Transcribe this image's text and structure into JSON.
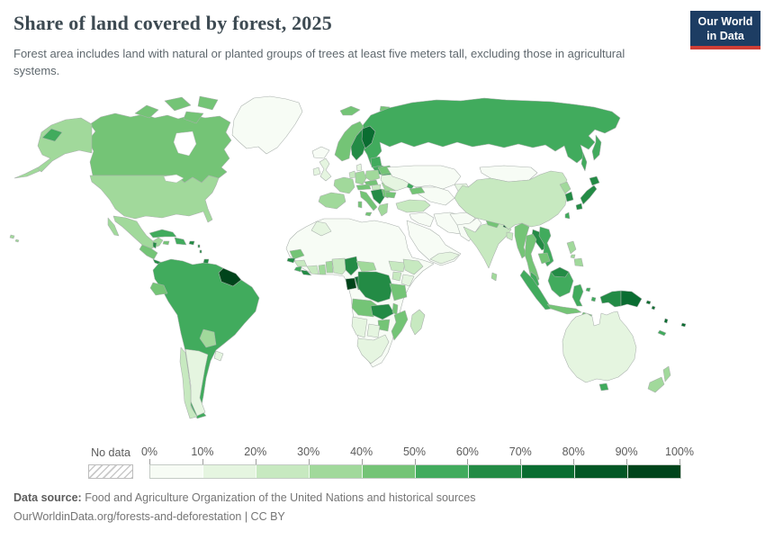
{
  "header": {
    "title": "Share of land covered by forest, 2025",
    "subtitle": "Forest area includes land with natural or planted groups of trees at least five meters tall, excluding those in agricultural systems.",
    "logo": {
      "line1": "Our World",
      "line2": "in Data",
      "bg": "#1d3d63",
      "accent": "#cf3e36"
    }
  },
  "legend": {
    "no_data_label": "No data",
    "tick_labels": [
      "0%",
      "10%",
      "20%",
      "30%",
      "40%",
      "50%",
      "60%",
      "70%",
      "80%",
      "90%",
      "100%"
    ],
    "palette": [
      "#f7fcf5",
      "#e5f5e0",
      "#c7e9c0",
      "#a1d99b",
      "#74c476",
      "#41ab5d",
      "#238b45",
      "#0a6d31",
      "#035725",
      "#00441b"
    ]
  },
  "footer": {
    "source_label": "Data source:",
    "source_text": " Food and Agriculture Organization of the United Nations and historical sources",
    "link_line": "OurWorldinData.org/forests-and-deforestation | CC BY"
  },
  "chart_data": {
    "type": "heatmap",
    "subtype": "choropleth-world-map",
    "title": "Share of land covered by forest, 2025",
    "unit": "% of land area covered by forest",
    "legend_position": "bottom",
    "bins": [
      {
        "range": "0-10%",
        "color": "#f7fcf5"
      },
      {
        "range": "10-20%",
        "color": "#e5f5e0"
      },
      {
        "range": "20-30%",
        "color": "#c7e9c0"
      },
      {
        "range": "30-40%",
        "color": "#a1d99b"
      },
      {
        "range": "40-50%",
        "color": "#74c476"
      },
      {
        "range": "50-60%",
        "color": "#41ab5d"
      },
      {
        "range": "60-70%",
        "color": "#238b45"
      },
      {
        "range": "70-80%",
        "color": "#0a6d31"
      },
      {
        "range": "80-90%",
        "color": "#035725"
      },
      {
        "range": "90-100%",
        "color": "#00441b"
      }
    ],
    "regions_by_bin": {
      "0-10%": [
        "Greenland",
        "Iceland",
        "Kazakhstan",
        "Central Asia",
        "Mongolia",
        "Iran",
        "Iraq & Syria",
        "Arabian Peninsula",
        "Afghanistan",
        "Pakistan",
        "Egypt",
        "Libya",
        "Algeria",
        "Sahara & Sahel belt",
        "Somalia"
      ],
      "10-20%": [
        "Argentina",
        "Uruguay",
        "United Kingdom",
        "Ireland",
        "Denmark",
        "Ukraine",
        "Australia",
        "Morocco",
        "Kenya",
        "Botswana",
        "Namibia",
        "South Africa",
        "Yemen & Oman",
        "Kyrgyzstan & Tajikistan"
      ],
      "20-30%": [
        "Chile",
        "Turkey",
        "China",
        "India",
        "Bangladesh",
        "Hungary",
        "Netherlands & Belgium",
        "Guinea",
        "Cote d'Ivoire",
        "Nigeria",
        "Ethiopia",
        "Uganda",
        "South Sudan",
        "Madagascar"
      ],
      "30-40%": [
        "United States",
        "Alaska",
        "Hawaii",
        "Mexico",
        "Paraguay",
        "France",
        "Spain & Portugal",
        "Germany",
        "Poland",
        "Greece",
        "Romania",
        "North Korea",
        "Philippines",
        "Sri Lanka",
        "New Zealand",
        "Ghana",
        "Togo & Benin",
        "Central African Republic"
      ],
      "40-50%": [
        "Canada",
        "Guatemala & Honduras & Nicaragua",
        "Jamaica",
        "Ecuador",
        "Norway",
        "Svalbard",
        "Austria & Switzerland",
        "Czechia & Slovakia",
        "Italy",
        "Serbia region",
        "Bulgaria",
        "Belarus",
        "Caucasus",
        "Nepal",
        "Myanmar",
        "Thailand",
        "Cambodia",
        "Java",
        "Timor",
        "Senegal",
        "Tanzania",
        "Angola",
        "Malawi",
        "Mozambique",
        "Zimbabwe"
      ],
      "50-60%": [
        "Russia",
        "Cuba",
        "Hispaniola",
        "Colombia",
        "Venezuela",
        "Peru",
        "Brazil",
        "Bolivia",
        "Estonia & Latvia",
        "Taiwan",
        "Vietnam",
        "Peninsular Malaysia",
        "Sumatra",
        "Borneo (Indonesia)",
        "Sulawesi",
        "Tasmania",
        "Sierra Leone",
        "New Caledonia"
      ],
      "60-70%": [
        "Costa Rica & Panama",
        "Belize",
        "Puerto Rico",
        "Lesser Antilles",
        "Trinidad & Tobago",
        "Sweden",
        "Slovenia & Bosnia & Montenegro",
        "South Korea",
        "Japan",
        "Laos",
        "Malaysian Borneo",
        "Western New Guinea",
        "Guinea-Bissau",
        "Liberia",
        "Cameroon",
        "DR Congo",
        "Zambia"
      ],
      "70-80%": [
        "Finland",
        "Papua New Guinea",
        "Solomon Islands",
        "Vanuatu",
        "Fiji",
        "Republic of the Congo"
      ],
      "80-90%": [
        "Bhutan"
      ],
      "90-100%": [
        "Guyana",
        "Suriname",
        "French Guiana",
        "Gabon"
      ]
    }
  }
}
